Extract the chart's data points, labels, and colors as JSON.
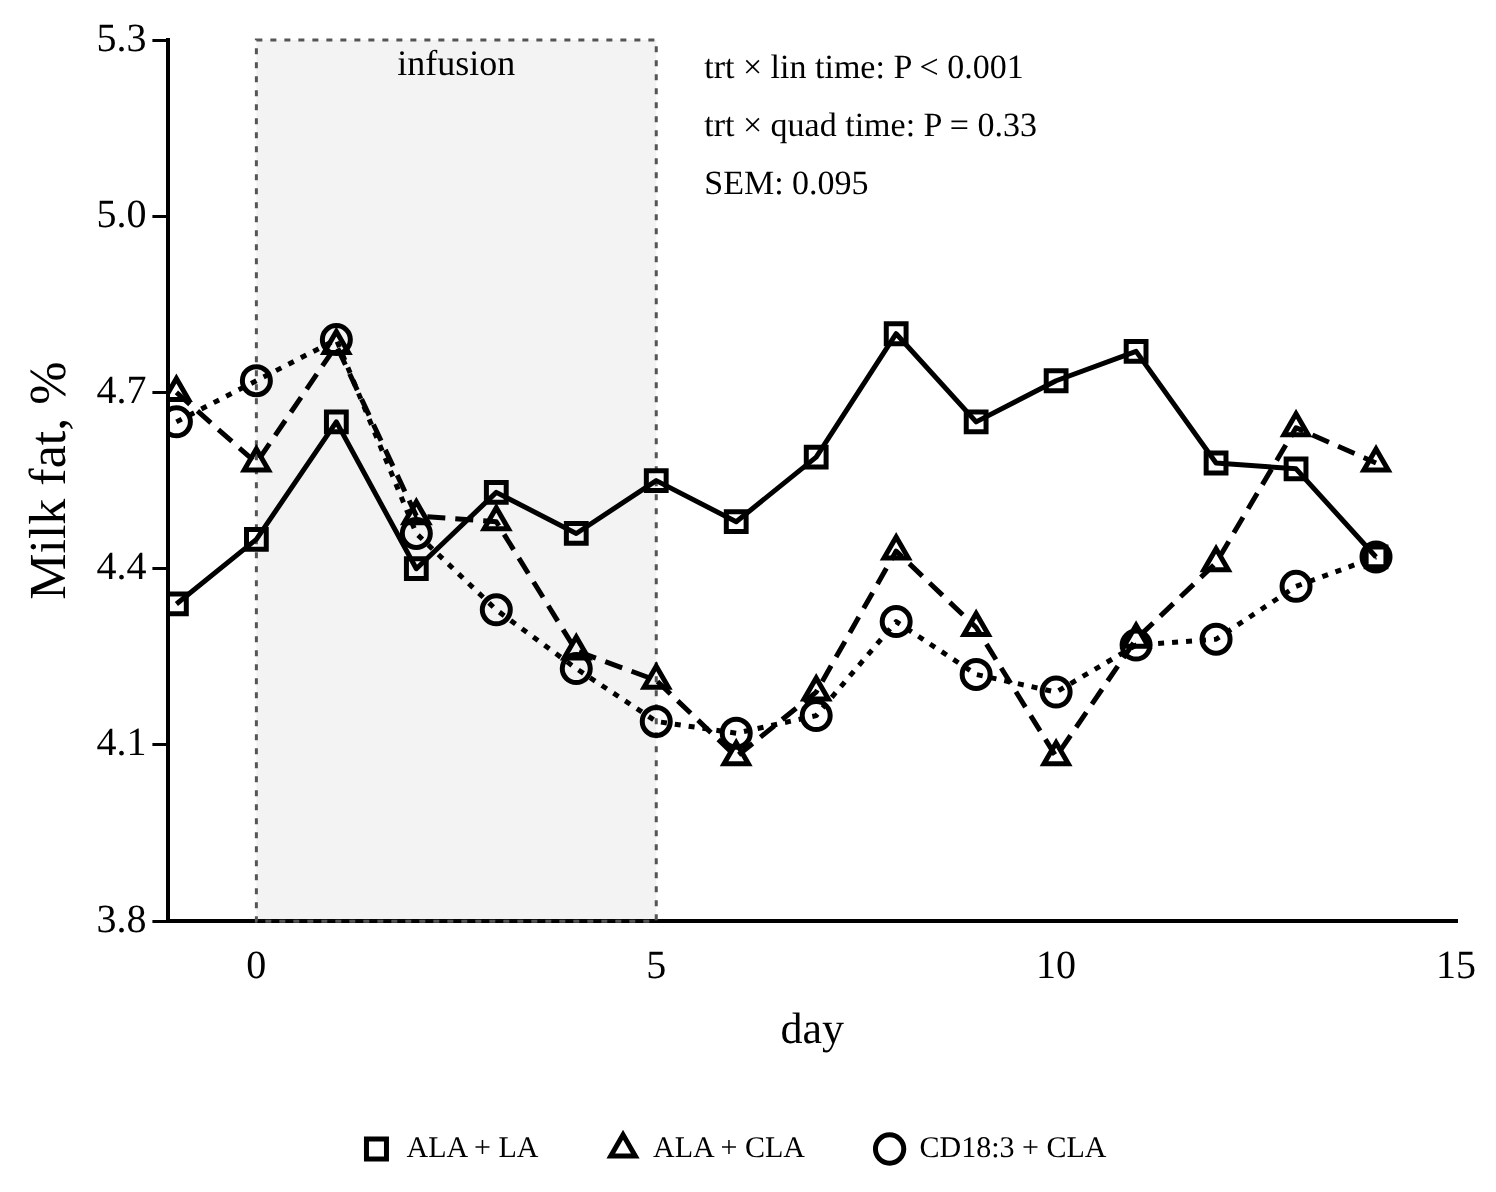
{
  "chart_data": {
    "type": "line",
    "xlabel": "day",
    "ylabel": "Milk fat, %",
    "x": [
      -1,
      0,
      1,
      2,
      3,
      4,
      5,
      6,
      7,
      8,
      9,
      10,
      11,
      12,
      13,
      14
    ],
    "xlim": [
      -1.1,
      15
    ],
    "xticks": [
      0,
      5,
      10,
      15
    ],
    "ylim": [
      3.8,
      5.3
    ],
    "yticks": [
      3.8,
      4.1,
      4.4,
      4.7,
      {
        "value": 5,
        "label": "5.0"
      },
      5.3
    ],
    "series": [
      {
        "name": "ALA + LA",
        "color": "#000000",
        "marker": "square",
        "line_style": "solid",
        "values": [
          4.34,
          4.45,
          4.65,
          4.4,
          4.53,
          4.46,
          4.55,
          4.48,
          4.59,
          4.8,
          4.65,
          4.72,
          4.77,
          4.58,
          4.57,
          4.42
        ]
      },
      {
        "name": "ALA + CLA",
        "color": "#000000",
        "marker": "triangle",
        "line_style": "dashed",
        "values": [
          4.7,
          4.58,
          4.78,
          4.49,
          4.48,
          4.26,
          4.21,
          4.08,
          4.19,
          4.43,
          4.3,
          4.08,
          4.28,
          4.41,
          4.64,
          4.58
        ]
      },
      {
        "name": "CD18:3 + CLA",
        "color": "#000000",
        "marker": "circle",
        "line_style": "dotted",
        "values": [
          4.65,
          4.72,
          4.79,
          4.46,
          4.33,
          4.23,
          4.14,
          4.12,
          4.15,
          4.31,
          4.22,
          4.19,
          4.27,
          4.28,
          4.37,
          4.42
        ]
      }
    ],
    "bands": [
      {
        "axis": "x",
        "from": 0,
        "to": 5,
        "label": "infusion",
        "color": "#555555"
      }
    ],
    "annotations": [
      "trt × lin time: P < 0.001",
      "trt × quad time: P = 0.33",
      "SEM: 0.095"
    ],
    "legend": "bottom",
    "grid": false
  }
}
